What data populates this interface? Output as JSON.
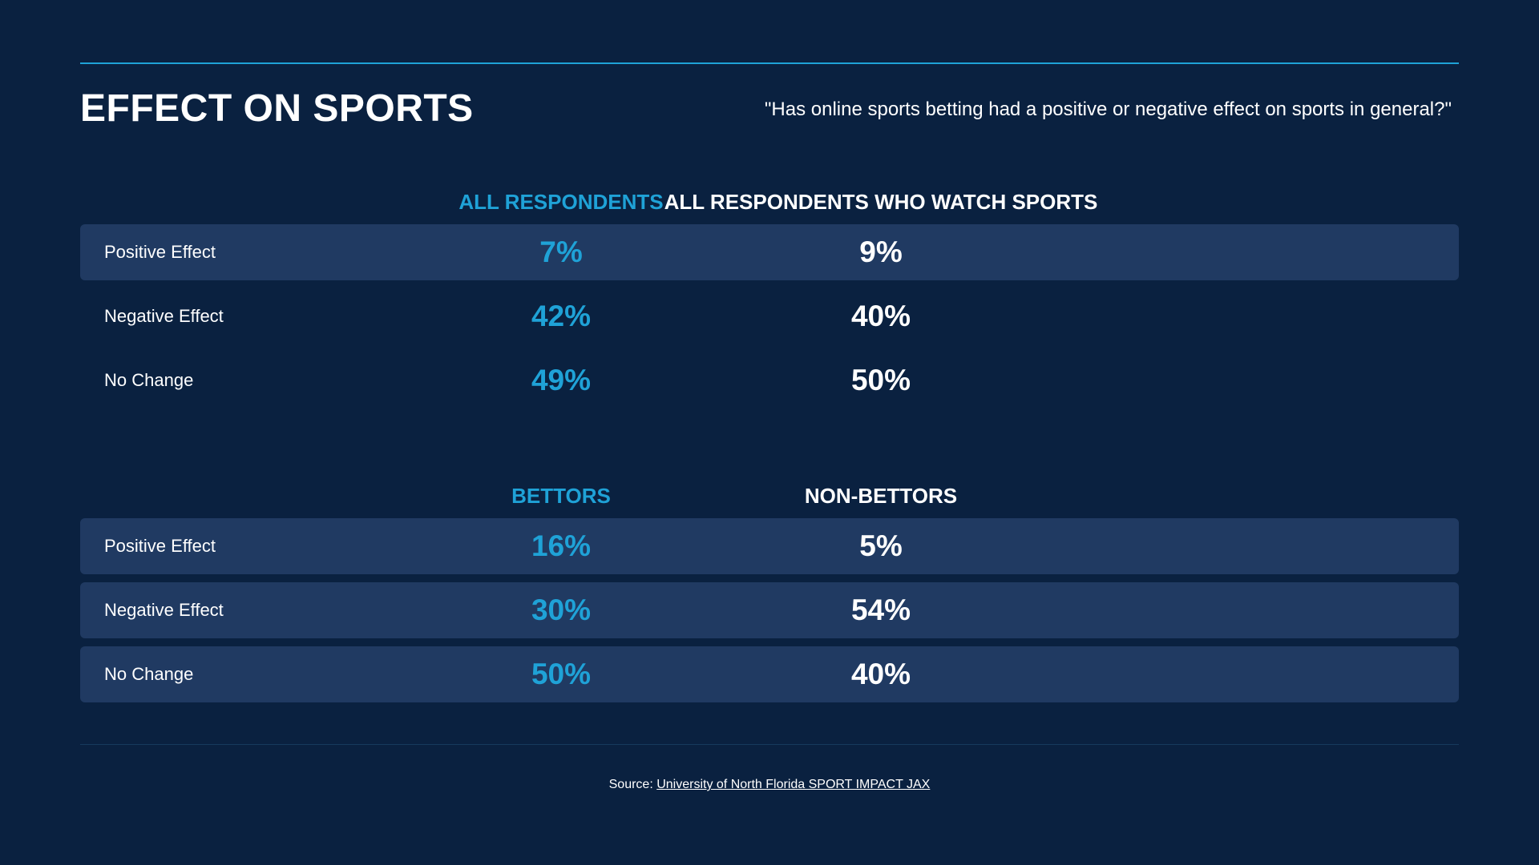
{
  "title": "EFFECT ON SPORTS",
  "question": "\"Has online sports betting had a positive or negative effect on sports in general?\"",
  "colors": {
    "background": "#0a2140",
    "accent": "#1fa2d7",
    "row_shade": "#203a62",
    "text": "#ffffff"
  },
  "chart_data": {
    "type": "table",
    "tables": [
      {
        "columns": [
          "ALL RESPONDENTS",
          "ALL RESPONDENTS WHO WATCH SPORTS"
        ],
        "rows": [
          {
            "label": "Positive Effect",
            "values": [
              "7%",
              "9%"
            ],
            "shaded": true
          },
          {
            "label": "Negative Effect",
            "values": [
              "42%",
              "40%"
            ],
            "shaded": false
          },
          {
            "label": "No Change",
            "values": [
              "49%",
              "50%"
            ],
            "shaded": false
          }
        ]
      },
      {
        "columns": [
          "BETTORS",
          "NON-BETTORS"
        ],
        "rows": [
          {
            "label": "Positive Effect",
            "values": [
              "16%",
              "5%"
            ],
            "shaded": true
          },
          {
            "label": "Negative Effect",
            "values": [
              "30%",
              "54%"
            ],
            "shaded": true
          },
          {
            "label": "No Change",
            "values": [
              "50%",
              "40%"
            ],
            "shaded": true
          }
        ]
      }
    ]
  },
  "source": {
    "prefix": "Source: ",
    "link_text": "University of North Florida SPORT IMPACT JAX"
  }
}
